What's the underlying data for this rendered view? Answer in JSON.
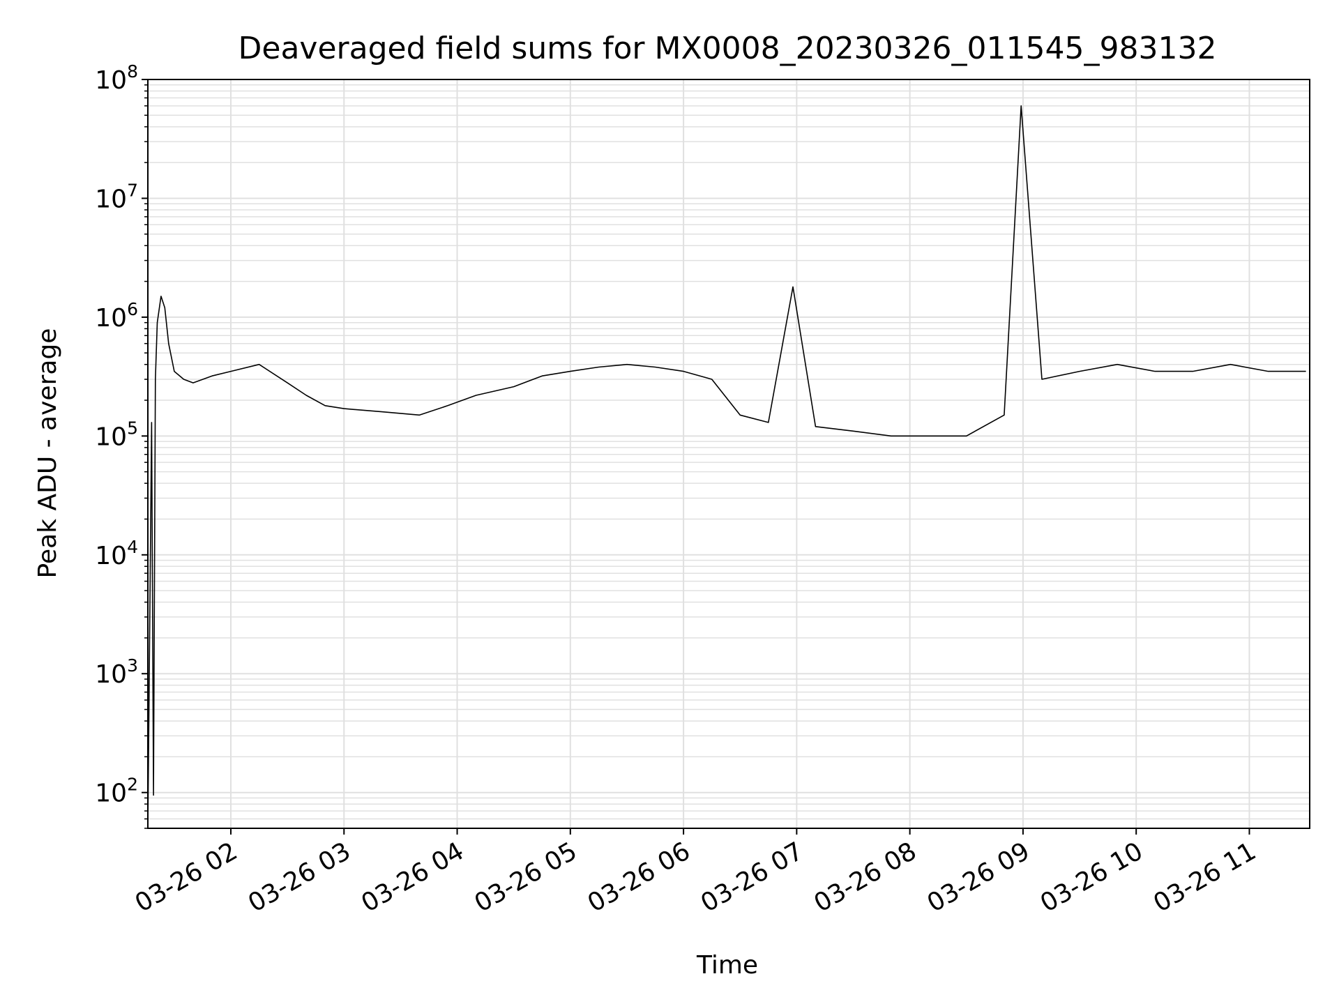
{
  "chart_data": {
    "type": "line",
    "title": "Deaveraged field sums for MX0008_20230326_011545_983132",
    "xlabel": "Time",
    "ylabel": "Peak ADU - average",
    "x_scale": "time",
    "y_scale": "log",
    "xlim": [
      "2023-03-26 01:16",
      "2023-03-26 11:32"
    ],
    "ylim": [
      50,
      100000000
    ],
    "grid": true,
    "grid_minor": true,
    "legend": "none",
    "line_color": "#000000",
    "grid_color": "#e0e0e0",
    "x_ticks": [
      {
        "value": "2023-03-26 02:00",
        "label": "03-26 02"
      },
      {
        "value": "2023-03-26 03:00",
        "label": "03-26 03"
      },
      {
        "value": "2023-03-26 04:00",
        "label": "03-26 04"
      },
      {
        "value": "2023-03-26 05:00",
        "label": "03-26 05"
      },
      {
        "value": "2023-03-26 06:00",
        "label": "03-26 06"
      },
      {
        "value": "2023-03-26 07:00",
        "label": "03-26 07"
      },
      {
        "value": "2023-03-26 08:00",
        "label": "03-26 08"
      },
      {
        "value": "2023-03-26 09:00",
        "label": "03-26 09"
      },
      {
        "value": "2023-03-26 10:00",
        "label": "03-26 10"
      },
      {
        "value": "2023-03-26 11:00",
        "label": "03-26 11"
      }
    ],
    "y_ticks": [
      {
        "value": 100,
        "base": "10",
        "exp": "2"
      },
      {
        "value": 1000,
        "base": "10",
        "exp": "3"
      },
      {
        "value": 10000,
        "base": "10",
        "exp": "4"
      },
      {
        "value": 100000,
        "base": "10",
        "exp": "5"
      },
      {
        "value": 1000000,
        "base": "10",
        "exp": "6"
      },
      {
        "value": 10000000,
        "base": "10",
        "exp": "7"
      },
      {
        "value": 100000000,
        "base": "10",
        "exp": "8"
      }
    ],
    "series": [
      {
        "x": [
          "2023-03-26 01:16",
          "2023-03-26 01:18",
          "2023-03-26 01:19",
          "2023-03-26 01:20",
          "2023-03-26 01:21",
          "2023-03-26 01:23",
          "2023-03-26 01:25",
          "2023-03-26 01:27",
          "2023-03-26 01:30",
          "2023-03-26 01:35",
          "2023-03-26 01:40",
          "2023-03-26 01:50",
          "2023-03-26 02:00",
          "2023-03-26 02:15",
          "2023-03-26 02:30",
          "2023-03-26 02:40",
          "2023-03-26 02:50",
          "2023-03-26 03:00",
          "2023-03-26 03:20",
          "2023-03-26 03:40",
          "2023-03-26 03:55",
          "2023-03-26 04:10",
          "2023-03-26 04:30",
          "2023-03-26 04:45",
          "2023-03-26 05:00",
          "2023-03-26 05:15",
          "2023-03-26 05:30",
          "2023-03-26 05:45",
          "2023-03-26 06:00",
          "2023-03-26 06:15",
          "2023-03-26 06:30",
          "2023-03-26 06:45",
          "2023-03-26 06:58",
          "2023-03-26 07:10",
          "2023-03-26 07:30",
          "2023-03-26 07:50",
          "2023-03-26 08:10",
          "2023-03-26 08:30",
          "2023-03-26 08:50",
          "2023-03-26 08:59",
          "2023-03-26 09:10",
          "2023-03-26 09:30",
          "2023-03-26 09:50",
          "2023-03-26 10:10",
          "2023-03-26 10:30",
          "2023-03-26 10:50",
          "2023-03-26 11:10",
          "2023-03-26 11:30"
        ],
        "values": [
          50,
          130000,
          95,
          300000,
          900000,
          1500000,
          1200000,
          600000,
          350000,
          300000,
          280000,
          320000,
          350000,
          400000,
          280000,
          220000,
          180000,
          170000,
          160000,
          150000,
          180000,
          220000,
          260000,
          320000,
          350000,
          380000,
          400000,
          380000,
          350000,
          300000,
          150000,
          130000,
          1800000,
          120000,
          110000,
          100000,
          100000,
          100000,
          150000,
          60000000,
          300000,
          350000,
          400000,
          350000,
          350000,
          400000,
          350000,
          350000
        ]
      }
    ]
  }
}
